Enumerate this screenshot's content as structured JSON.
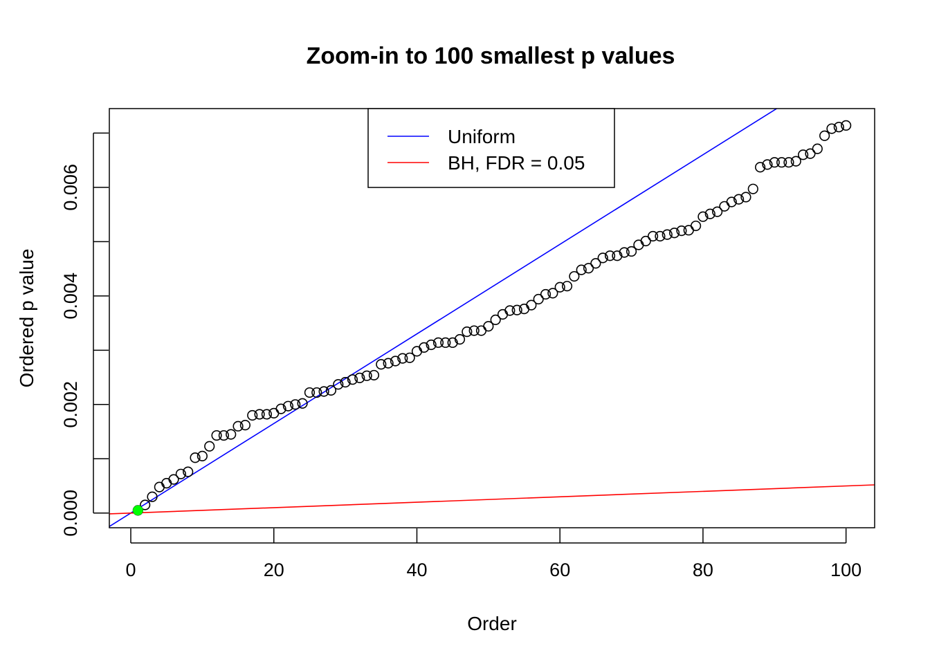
{
  "chart_data": {
    "type": "scatter",
    "title": "Zoom-in to 100 smallest p values",
    "xlabel": "Order",
    "ylabel": "Ordered p value",
    "xlim": [
      -3,
      104
    ],
    "ylim": [
      -0.00027,
      0.00745
    ],
    "xticks": [
      0,
      20,
      40,
      60,
      80,
      100
    ],
    "xtick_labels": [
      "0",
      "20",
      "40",
      "60",
      "80",
      "100"
    ],
    "yticks": [
      0,
      0.001,
      0.002,
      0.003,
      0.004,
      0.005,
      0.006,
      0.007
    ],
    "ytick_labels": [
      "0.000",
      "",
      "0.002",
      "",
      "0.004",
      "",
      "0.006",
      ""
    ],
    "grid": false,
    "legend_position": "top-center",
    "legend": [
      {
        "label": "Uniform",
        "color": "#0000ff"
      },
      {
        "label": "BH, FDR = 0.05",
        "color": "#ff0000"
      }
    ],
    "lines": [
      {
        "name": "Uniform",
        "color": "#0000ff",
        "slope": 8.25e-05,
        "intercept": 0
      },
      {
        "name": "BH, FDR = 0.05",
        "color": "#ff0000",
        "slope": 5e-06,
        "intercept": 0
      }
    ],
    "highlight": {
      "x": 1,
      "y": 5e-05,
      "color": "#00ff00"
    },
    "x": [
      1,
      2,
      3,
      4,
      5,
      6,
      7,
      8,
      9,
      10,
      11,
      12,
      13,
      14,
      15,
      16,
      17,
      18,
      19,
      20,
      21,
      22,
      23,
      24,
      25,
      26,
      27,
      28,
      29,
      30,
      31,
      32,
      33,
      34,
      35,
      36,
      37,
      38,
      39,
      40,
      41,
      42,
      43,
      44,
      45,
      46,
      47,
      48,
      49,
      50,
      51,
      52,
      53,
      54,
      55,
      56,
      57,
      58,
      59,
      60,
      61,
      62,
      63,
      64,
      65,
      66,
      67,
      68,
      69,
      70,
      71,
      72,
      73,
      74,
      75,
      76,
      77,
      78,
      79,
      80,
      81,
      82,
      83,
      84,
      85,
      86,
      87,
      88,
      89,
      90,
      91,
      92,
      93,
      94,
      95,
      96,
      97,
      98,
      99,
      100
    ],
    "y": [
      5e-05,
      0.00015,
      0.0003,
      0.00048,
      0.00055,
      0.00062,
      0.00072,
      0.00076,
      0.00102,
      0.00105,
      0.00123,
      0.00143,
      0.00143,
      0.00145,
      0.0016,
      0.00162,
      0.0018,
      0.00182,
      0.00182,
      0.00184,
      0.00192,
      0.00197,
      0.002,
      0.00202,
      0.00222,
      0.00222,
      0.00224,
      0.00226,
      0.00237,
      0.00241,
      0.00246,
      0.00249,
      0.00253,
      0.00254,
      0.00274,
      0.00276,
      0.0028,
      0.00285,
      0.00286,
      0.00298,
      0.00305,
      0.0031,
      0.00314,
      0.00314,
      0.00314,
      0.0032,
      0.00334,
      0.00336,
      0.00336,
      0.00344,
      0.00356,
      0.00366,
      0.00373,
      0.00374,
      0.00376,
      0.00383,
      0.00394,
      0.00403,
      0.00405,
      0.00416,
      0.00418,
      0.00436,
      0.00448,
      0.00451,
      0.0046,
      0.0047,
      0.00474,
      0.00474,
      0.0048,
      0.00482,
      0.00494,
      0.00501,
      0.0051,
      0.0051,
      0.00513,
      0.00516,
      0.0052,
      0.00521,
      0.00529,
      0.00546,
      0.00551,
      0.00555,
      0.00565,
      0.00573,
      0.00578,
      0.00582,
      0.00597,
      0.00637,
      0.00642,
      0.00646,
      0.00646,
      0.00646,
      0.00648,
      0.0066,
      0.00662,
      0.00671,
      0.00695,
      0.00708,
      0.00711,
      0.00714
    ]
  }
}
